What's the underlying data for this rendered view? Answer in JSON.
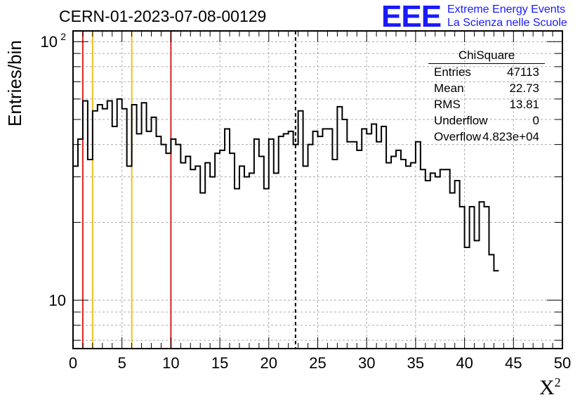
{
  "chart_data": {
    "type": "histogram",
    "title": "CERN-01-2023-07-08-00129",
    "xlabel": "X",
    "xlabel_sup": "2",
    "ylabel": "Entries/bin",
    "xlim": [
      0,
      50
    ],
    "ylim_log": [
      6.5,
      110
    ],
    "yscale": "log",
    "grid": true,
    "x_ticks": [
      0,
      5,
      10,
      15,
      20,
      25,
      30,
      35,
      40,
      45,
      50
    ],
    "y_ticks": [
      {
        "value": 10,
        "label": "10"
      },
      {
        "value": 100,
        "label": "10",
        "sup": "2"
      }
    ],
    "bin_width": 0.5,
    "values": [
      33,
      42,
      59,
      35,
      54,
      57,
      55,
      59,
      47,
      60,
      55,
      33,
      57,
      44,
      58,
      45,
      51,
      43,
      40,
      37,
      42,
      40,
      34,
      36,
      32,
      33,
      26,
      34,
      30,
      37,
      38,
      46,
      37,
      27,
      33,
      30,
      31,
      42,
      36,
      27,
      42,
      31,
      43,
      44,
      45,
      40,
      54,
      33,
      40,
      45,
      43,
      46,
      46,
      35,
      56,
      50,
      41,
      41,
      38,
      46,
      44,
      48,
      41,
      47,
      34,
      36,
      38,
      35,
      33,
      34,
      41,
      32,
      29,
      31,
      30,
      32,
      32,
      26,
      29,
      23,
      16,
      23,
      17,
      24,
      23,
      15,
      13
    ],
    "vertical_lines": [
      {
        "x": 1,
        "color": "#dd2222",
        "style": "solid"
      },
      {
        "x": 2,
        "color": "#f0c020",
        "style": "solid"
      },
      {
        "x": 6,
        "color": "#f0c020",
        "style": "solid"
      },
      {
        "x": 10,
        "color": "#dd2222",
        "style": "solid"
      },
      {
        "x": 22.73,
        "color": "#000000",
        "style": "dashed"
      }
    ]
  },
  "stats_box": {
    "title": "ChiSquare",
    "rows": [
      {
        "key": "Entries",
        "value": "47113"
      },
      {
        "key": "Mean",
        "value": "22.73"
      },
      {
        "key": "RMS",
        "value": "13.81"
      },
      {
        "key": "Underflow",
        "value": "0"
      },
      {
        "key": "Overflow",
        "value": "4.823e+04"
      }
    ]
  },
  "logo": {
    "text": "EEE",
    "line1": "Extreme Energy Events",
    "line2": "La Scienza nelle Scuole",
    "color": "#1a1aff"
  }
}
